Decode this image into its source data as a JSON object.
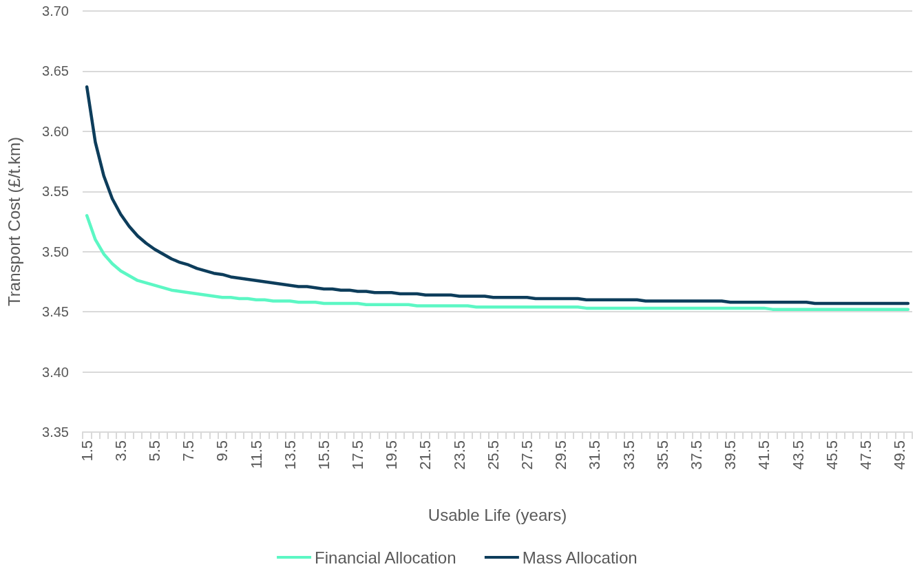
{
  "chart_data": {
    "type": "line",
    "xlabel": "Usable Life (years)",
    "ylabel": "Transport Cost (£/t.km)",
    "categories": [
      "1.5",
      null,
      null,
      null,
      "3.5",
      null,
      null,
      null,
      "5.5",
      null,
      null,
      null,
      "7.5",
      null,
      null,
      null,
      "9.5",
      null,
      null,
      null,
      "11.5",
      null,
      null,
      null,
      "13.5",
      null,
      null,
      null,
      "15.5",
      null,
      null,
      null,
      "17.5",
      null,
      null,
      null,
      "19.5",
      null,
      null,
      null,
      "21.5",
      null,
      null,
      null,
      "23.5",
      null,
      null,
      null,
      "25.5",
      null,
      null,
      null,
      "27.5",
      null,
      null,
      null,
      "29.5",
      null,
      null,
      null,
      "31.5",
      null,
      null,
      null,
      "33.5",
      null,
      null,
      null,
      "35.5",
      null,
      null,
      null,
      "37.5",
      null,
      null,
      null,
      "39.5",
      null,
      null,
      null,
      "41.5",
      null,
      null,
      null,
      "43.5",
      null,
      null,
      null,
      "45.5",
      null,
      null,
      null,
      "47.5",
      null,
      null,
      null,
      "49.5",
      null
    ],
    "series": [
      {
        "name": "Financial Allocation",
        "color": "#5cf7c4",
        "values": [
          3.53,
          3.51,
          3.498,
          3.49,
          3.484,
          3.48,
          3.476,
          3.474,
          3.472,
          3.47,
          3.468,
          3.467,
          3.466,
          3.465,
          3.464,
          3.463,
          3.462,
          3.462,
          3.461,
          3.461,
          3.46,
          3.46,
          3.459,
          3.459,
          3.459,
          3.458,
          3.458,
          3.458,
          3.457,
          3.457,
          3.457,
          3.457,
          3.457,
          3.456,
          3.456,
          3.456,
          3.456,
          3.456,
          3.456,
          3.455,
          3.455,
          3.455,
          3.455,
          3.455,
          3.455,
          3.455,
          3.454,
          3.454,
          3.454,
          3.454,
          3.454,
          3.454,
          3.454,
          3.454,
          3.454,
          3.454,
          3.454,
          3.454,
          3.454,
          3.453,
          3.453,
          3.453,
          3.453,
          3.453,
          3.453,
          3.453,
          3.453,
          3.453,
          3.453,
          3.453,
          3.453,
          3.453,
          3.453,
          3.453,
          3.453,
          3.453,
          3.453,
          3.453,
          3.453,
          3.453,
          3.453,
          3.452,
          3.452,
          3.452,
          3.452,
          3.452,
          3.452,
          3.452,
          3.452,
          3.452,
          3.452,
          3.452,
          3.452,
          3.452,
          3.452,
          3.452,
          3.452,
          3.452
        ]
      },
      {
        "name": "Mass Allocation",
        "color": "#0d3d5b",
        "values": [
          3.637,
          3.591,
          3.563,
          3.544,
          3.531,
          3.521,
          3.513,
          3.507,
          3.502,
          3.498,
          3.494,
          3.491,
          3.489,
          3.486,
          3.484,
          3.482,
          3.481,
          3.479,
          3.478,
          3.477,
          3.476,
          3.475,
          3.474,
          3.473,
          3.472,
          3.471,
          3.471,
          3.47,
          3.469,
          3.469,
          3.468,
          3.468,
          3.467,
          3.467,
          3.466,
          3.466,
          3.466,
          3.465,
          3.465,
          3.465,
          3.464,
          3.464,
          3.464,
          3.464,
          3.463,
          3.463,
          3.463,
          3.463,
          3.462,
          3.462,
          3.462,
          3.462,
          3.462,
          3.461,
          3.461,
          3.461,
          3.461,
          3.461,
          3.461,
          3.46,
          3.46,
          3.46,
          3.46,
          3.46,
          3.46,
          3.46,
          3.459,
          3.459,
          3.459,
          3.459,
          3.459,
          3.459,
          3.459,
          3.459,
          3.459,
          3.459,
          3.458,
          3.458,
          3.458,
          3.458,
          3.458,
          3.458,
          3.458,
          3.458,
          3.458,
          3.458,
          3.457,
          3.457,
          3.457,
          3.457,
          3.457,
          3.457,
          3.457,
          3.457,
          3.457,
          3.457,
          3.457,
          3.457
        ]
      }
    ],
    "ylim": [
      3.35,
      3.7
    ],
    "yticks": [
      3.35,
      {
        "value": 3.4,
        "label": "3.40"
      },
      3.45,
      {
        "value": 3.5,
        "label": "3.50"
      },
      3.55,
      {
        "value": 3.6,
        "label": "3.60"
      },
      3.65,
      {
        "value": 3.7,
        "label": "3.70"
      }
    ],
    "grid": "y",
    "legend": "bottom",
    "marker": "none",
    "line_style": "solid"
  }
}
